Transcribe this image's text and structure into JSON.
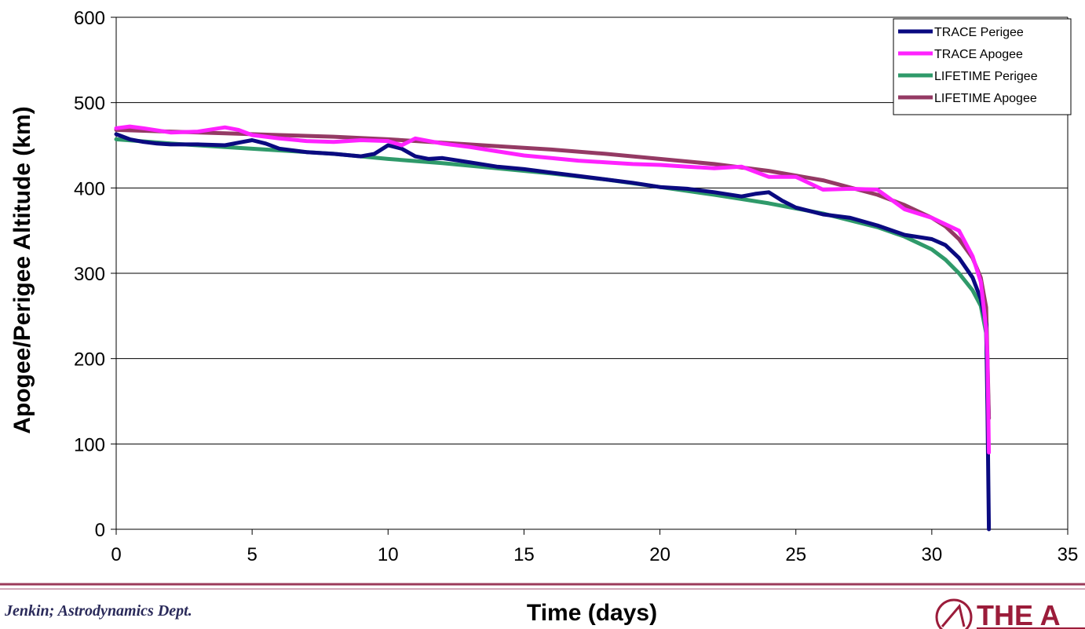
{
  "footer": {
    "author": "Jenkin; Astrodynamics Dept.",
    "logo_text": "THE A"
  },
  "colors": {
    "trace_perigee": "#0a0a80",
    "trace_apogee": "#ff22ff",
    "lifetime_perigee": "#2f9a6a",
    "lifetime_apogee": "#943a64",
    "footer_rule": "#9b3a5a",
    "logo": "#9b1c3a"
  },
  "chart_data": {
    "type": "line",
    "xlabel": "Time (days)",
    "ylabel": "Apogee/Perigee Altitude (km)",
    "xlim": [
      0,
      35
    ],
    "ylim": [
      0,
      600
    ],
    "xticks": [
      0,
      5,
      10,
      15,
      20,
      25,
      30,
      35
    ],
    "yticks": [
      0,
      100,
      200,
      300,
      400,
      500,
      600
    ],
    "grid": "horizontal",
    "legend_position": "top-right",
    "series": [
      {
        "name": "TRACE Perigee",
        "color_key": "trace_perigee",
        "points": [
          [
            0,
            463
          ],
          [
            0.5,
            457
          ],
          [
            1,
            454
          ],
          [
            1.5,
            452
          ],
          [
            2,
            451
          ],
          [
            3,
            451
          ],
          [
            4,
            450
          ],
          [
            4.5,
            453
          ],
          [
            5,
            456
          ],
          [
            5.5,
            452
          ],
          [
            6,
            446
          ],
          [
            7,
            442
          ],
          [
            8,
            440
          ],
          [
            9,
            437
          ],
          [
            9.5,
            440
          ],
          [
            10,
            450
          ],
          [
            10.5,
            446
          ],
          [
            11,
            437
          ],
          [
            11.5,
            434
          ],
          [
            12,
            435
          ],
          [
            13,
            430
          ],
          [
            14,
            425
          ],
          [
            15,
            422
          ],
          [
            16,
            418
          ],
          [
            17,
            414
          ],
          [
            18,
            410
          ],
          [
            19,
            406
          ],
          [
            20,
            401
          ],
          [
            21,
            399
          ],
          [
            22,
            395
          ],
          [
            23,
            390
          ],
          [
            23.5,
            393
          ],
          [
            24,
            395
          ],
          [
            24.5,
            385
          ],
          [
            25,
            377
          ],
          [
            26,
            369
          ],
          [
            27,
            365
          ],
          [
            28,
            356
          ],
          [
            29,
            345
          ],
          [
            30,
            340
          ],
          [
            30.5,
            333
          ],
          [
            31,
            318
          ],
          [
            31.5,
            295
          ],
          [
            31.8,
            270
          ],
          [
            32,
            240
          ],
          [
            32.05,
            140
          ],
          [
            32.1,
            0
          ]
        ]
      },
      {
        "name": "TRACE Apogee",
        "color_key": "trace_apogee",
        "points": [
          [
            0,
            470
          ],
          [
            0.5,
            472
          ],
          [
            1,
            470
          ],
          [
            2,
            465
          ],
          [
            3,
            466
          ],
          [
            4,
            471
          ],
          [
            4.5,
            468
          ],
          [
            5,
            462
          ],
          [
            6,
            458
          ],
          [
            7,
            455
          ],
          [
            8,
            454
          ],
          [
            9,
            456
          ],
          [
            10,
            455
          ],
          [
            10.5,
            450
          ],
          [
            11,
            458
          ],
          [
            11.5,
            455
          ],
          [
            12,
            452
          ],
          [
            13,
            448
          ],
          [
            14,
            443
          ],
          [
            15,
            438
          ],
          [
            16,
            435
          ],
          [
            17,
            432
          ],
          [
            18,
            430
          ],
          [
            19,
            428
          ],
          [
            20,
            427
          ],
          [
            21,
            425
          ],
          [
            22,
            423
          ],
          [
            23,
            425
          ],
          [
            24,
            413
          ],
          [
            25,
            413
          ],
          [
            26,
            398
          ],
          [
            27,
            399
          ],
          [
            28,
            398
          ],
          [
            29,
            375
          ],
          [
            30,
            365
          ],
          [
            31,
            350
          ],
          [
            31.5,
            320
          ],
          [
            31.8,
            290
          ],
          [
            32,
            235
          ],
          [
            32.05,
            200
          ],
          [
            32.1,
            90
          ]
        ]
      },
      {
        "name": "LIFETIME Perigee",
        "color_key": "lifetime_perigee",
        "points": [
          [
            0,
            457
          ],
          [
            2,
            452
          ],
          [
            4,
            448
          ],
          [
            6,
            444
          ],
          [
            8,
            440
          ],
          [
            10,
            434
          ],
          [
            12,
            429
          ],
          [
            14,
            423
          ],
          [
            16,
            417
          ],
          [
            18,
            410
          ],
          [
            20,
            401
          ],
          [
            22,
            392
          ],
          [
            24,
            382
          ],
          [
            26,
            370
          ],
          [
            28,
            354
          ],
          [
            29,
            343
          ],
          [
            30,
            328
          ],
          [
            30.5,
            316
          ],
          [
            31,
            300
          ],
          [
            31.5,
            280
          ],
          [
            31.8,
            262
          ],
          [
            32,
            230
          ],
          [
            32.05,
            180
          ],
          [
            32.1,
            130
          ]
        ]
      },
      {
        "name": "LIFETIME Apogee",
        "color_key": "lifetime_apogee",
        "points": [
          [
            0,
            468
          ],
          [
            2,
            466
          ],
          [
            4,
            464
          ],
          [
            6,
            462
          ],
          [
            8,
            460
          ],
          [
            10,
            457
          ],
          [
            12,
            453
          ],
          [
            14,
            449
          ],
          [
            16,
            445
          ],
          [
            18,
            440
          ],
          [
            20,
            434
          ],
          [
            22,
            428
          ],
          [
            24,
            420
          ],
          [
            26,
            409
          ],
          [
            28,
            392
          ],
          [
            29,
            380
          ],
          [
            30,
            365
          ],
          [
            30.5,
            355
          ],
          [
            31,
            340
          ],
          [
            31.5,
            318
          ],
          [
            31.8,
            295
          ],
          [
            32,
            260
          ],
          [
            32.05,
            200
          ],
          [
            32.1,
            130
          ]
        ]
      }
    ]
  }
}
